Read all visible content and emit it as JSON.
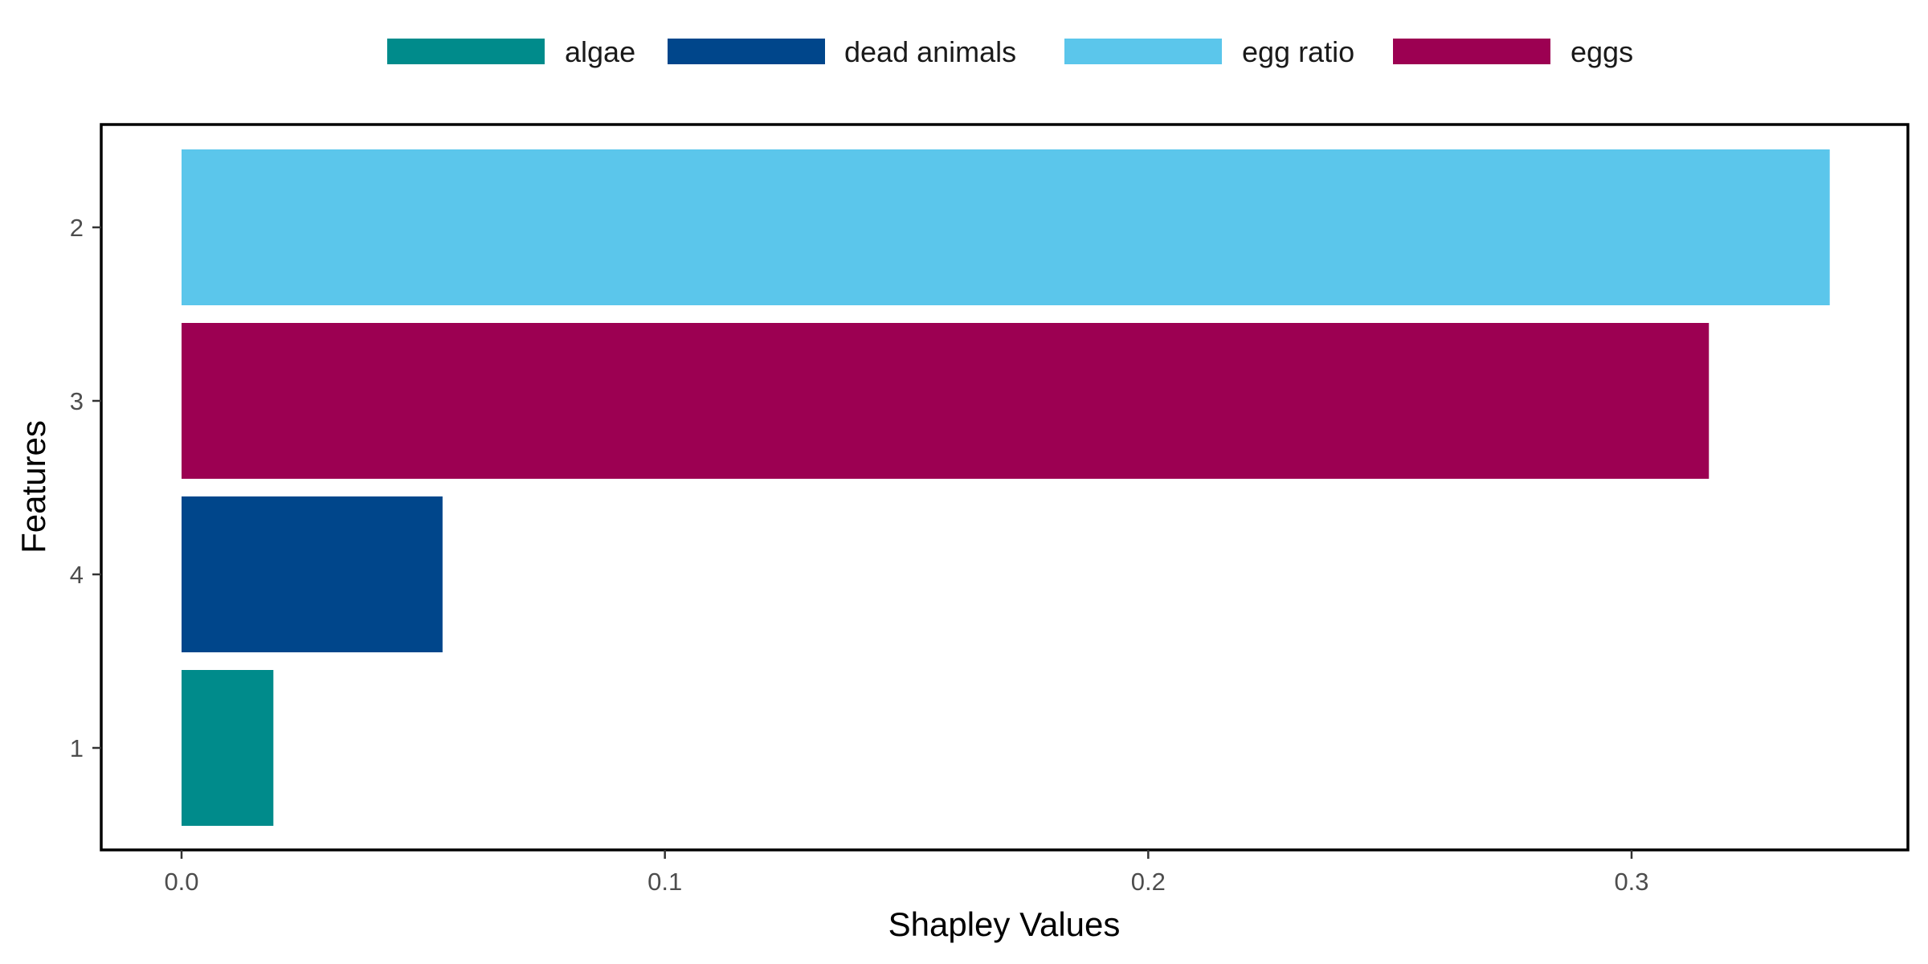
{
  "chart_data": {
    "type": "bar",
    "orientation": "horizontal",
    "xlabel": "Shapley Values",
    "ylabel": "Features",
    "xlim": [
      -0.0165,
      0.357
    ],
    "x_ticks": [
      0.0,
      0.1,
      0.2,
      0.3
    ],
    "x_tick_labels": [
      "0.0",
      "0.1",
      "0.2",
      "0.3"
    ],
    "categories": [
      "2",
      "3",
      "4",
      "1"
    ],
    "values": [
      0.341,
      0.316,
      0.054,
      0.019
    ],
    "bar_series": [
      "egg ratio",
      "eggs",
      "dead animals",
      "algae"
    ],
    "legend": {
      "position": "top",
      "entries": [
        {
          "name": "algae",
          "color": "#008B8B"
        },
        {
          "name": "dead animals",
          "color": "#00468B"
        },
        {
          "name": "egg ratio",
          "color": "#5BC6EB"
        },
        {
          "name": "eggs",
          "color": "#9C0052"
        }
      ]
    },
    "grid": false
  }
}
